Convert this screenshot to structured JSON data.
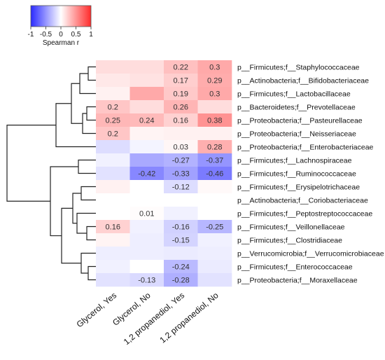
{
  "chart_data": {
    "type": "heatmap",
    "legend": {
      "title": "Spearman r",
      "ticks": [
        "-1",
        "-0.5",
        "0",
        "0.5",
        "1"
      ],
      "tick_values": [
        -1,
        -0.5,
        0,
        0.5,
        1
      ],
      "low_color": "#2b2bff",
      "mid_color": "#ffffff",
      "high_color": "#ff2b2b"
    },
    "columns": [
      "Glycerol, Yes",
      "Glycerol, No",
      "1,2 propanediol, Yes",
      "1,2 propanediol, No"
    ],
    "rows": [
      "p__Firmicutes;f__Staphylococcaceae",
      "p__Actinobacteria;f__Bifidobacteriaceae",
      "p__Firmicutes;f__Lactobacillaceae",
      "p__Bacteroidetes;f__Prevotellaceae",
      "p__Proteobacteria;f__Pasteurellaceae",
      "p__Proteobacteria;f__Neisseriaceae",
      "p__Proteobacteria;f__Enterobacteriaceae",
      "p__Firmicutes;f__Lachnospiraceae",
      "p__Firmicutes;f__Ruminococcaceae",
      "p__Firmicutes;f__Erysipelotrichaceae",
      "p__Actinobacteria;f__Coriobacteriaceae",
      "p__Firmicutes;f__Peptostreptococcaceae",
      "p__Firmicutes;f__Veillonellaceae",
      "p__Firmicutes;f__Clostridiaceae",
      "p__Verrucomicrobia;f__Verrucomicrobiaceae",
      "p__Firmicutes;f__Enterococcaceae",
      "p__Proteobacteria;f__Moraxellaceae"
    ],
    "values": [
      [
        0.12,
        0.12,
        0.22,
        0.3
      ],
      [
        0.08,
        0.1,
        0.17,
        0.29
      ],
      [
        0.05,
        0.3,
        0.19,
        0.3
      ],
      [
        0.2,
        0.12,
        0.26,
        0.12
      ],
      [
        0.25,
        0.24,
        0.16,
        0.38
      ],
      [
        0.2,
        0.04,
        0.05,
        0.05
      ],
      [
        -0.12,
        -0.04,
        0.03,
        0.28
      ],
      [
        -0.05,
        -0.3,
        -0.27,
        -0.37
      ],
      [
        -0.1,
        -0.42,
        -0.33,
        -0.46
      ],
      [
        0.05,
        0.0,
        -0.12,
        0.02
      ],
      [
        0.0,
        0.0,
        0.0,
        0.0
      ],
      [
        0.0,
        0.01,
        -0.05,
        0.0
      ],
      [
        0.16,
        -0.05,
        -0.16,
        -0.25
      ],
      [
        0.04,
        -0.06,
        -0.15,
        -0.05
      ],
      [
        -0.06,
        -0.06,
        -0.07,
        -0.06
      ],
      [
        -0.05,
        0.0,
        -0.24,
        -0.07
      ],
      [
        -0.1,
        -0.13,
        -0.28,
        -0.1
      ]
    ],
    "labels": [
      [
        "",
        "",
        "0.22",
        "0.3"
      ],
      [
        "",
        "",
        "0.17",
        "0.29"
      ],
      [
        "",
        "",
        "0.19",
        "0.3"
      ],
      [
        "0.2",
        "",
        "0.26",
        ""
      ],
      [
        "0.25",
        "0.24",
        "0.16",
        "0.38"
      ],
      [
        "0.2",
        "",
        "",
        ""
      ],
      [
        "",
        "",
        "0.03",
        "0.28"
      ],
      [
        "",
        "",
        "-0.27",
        "-0.37"
      ],
      [
        "",
        "-0.42",
        "-0.33",
        "-0.46"
      ],
      [
        "",
        "",
        "-0.12",
        ""
      ],
      [
        "",
        "",
        "",
        ""
      ],
      [
        "",
        "0.01",
        "",
        ""
      ],
      [
        "0.16",
        "",
        "-0.16",
        "-0.25"
      ],
      [
        "",
        "",
        "-0.15",
        ""
      ],
      [
        "",
        "",
        "",
        ""
      ],
      [
        "",
        "",
        "-0.24",
        ""
      ],
      [
        "",
        "-0.13",
        "-0.28",
        ""
      ]
    ]
  }
}
